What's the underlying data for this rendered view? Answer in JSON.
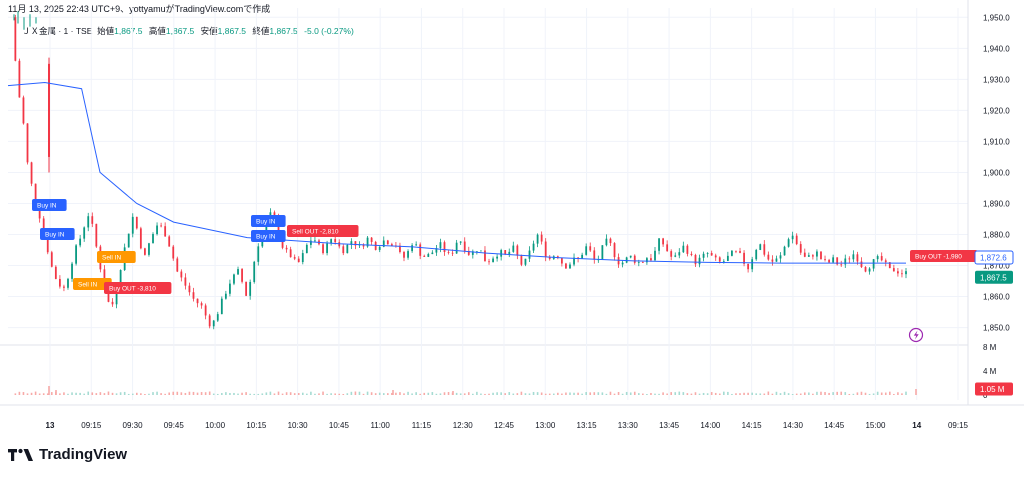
{
  "caption": "11月 13, 2025 22:43 UTC+9、yottyamuがTradingView.comで作成",
  "legend": {
    "symbol": "ＪＸ金属 · 1 · TSE",
    "open_label": "始値",
    "open": "1,867.5",
    "high_label": "高値",
    "high": "1,867.5",
    "low_label": "安値",
    "low": "1,867.5",
    "close_label": "終値",
    "close": "1,867.5",
    "change": "-5.0 (-0.27%)"
  },
  "footer": {
    "brand": "TradingView"
  },
  "colors": {
    "up": "#089981",
    "down": "#f23645",
    "vwap": "#2962ff",
    "buy_tag": "#2962ff",
    "sell_tag": "#ff9800",
    "out_tag": "#f23645",
    "grid": "#f0f3fa"
  },
  "chart_data": {
    "type": "candlestick",
    "y_ticks": [
      1950,
      1940,
      1930,
      1920,
      1910,
      1900,
      1890,
      1880,
      1870,
      1860,
      1850
    ],
    "y_tick_labels": [
      "1,950.0",
      "1,940.0",
      "1,930.0",
      "1,920.0",
      "1,910.0",
      "1,900.0",
      "1,890.0",
      "1,880.0",
      "1,870.0",
      "1,860.0",
      "1,850.0"
    ],
    "ylim": [
      1846,
      1953
    ],
    "x_ticks": [
      "13",
      "09:15",
      "09:30",
      "09:45",
      "10:00",
      "10:15",
      "10:30",
      "10:45",
      "11:00",
      "11:15",
      "12:30",
      "12:45",
      "13:00",
      "13:15",
      "13:30",
      "13:45",
      "14:00",
      "14:15",
      "14:30",
      "14:45",
      "15:00",
      "14",
      "09:15"
    ],
    "x_tick_bold": [
      "13",
      "14"
    ],
    "volume_ticks": [
      "8 M",
      "4 M",
      "0"
    ],
    "current_price_label": "1,872.6",
    "last_price_label": "1,867.5",
    "last_volume_label": "1.05 M",
    "price_path": [
      [
        0,
        1950
      ],
      [
        1,
        1948
      ],
      [
        2,
        1946
      ],
      [
        3,
        1940
      ],
      [
        4,
        1936
      ],
      [
        5,
        1931
      ],
      [
        6,
        1925
      ],
      [
        8,
        1918
      ],
      [
        9,
        1912
      ],
      [
        10,
        1905
      ],
      [
        12,
        1898
      ],
      [
        14,
        1893
      ],
      [
        16,
        1889
      ],
      [
        18,
        1884
      ],
      [
        20,
        1879
      ],
      [
        22,
        1874
      ],
      [
        24,
        1869
      ],
      [
        26,
        1866
      ],
      [
        28,
        1864
      ],
      [
        30,
        1862
      ],
      [
        32,
        1865
      ],
      [
        34,
        1870
      ],
      [
        36,
        1874
      ],
      [
        38,
        1877
      ],
      [
        40,
        1880
      ],
      [
        42,
        1884
      ],
      [
        44,
        1887
      ],
      [
        46,
        1882
      ],
      [
        48,
        1876
      ],
      [
        50,
        1870
      ],
      [
        52,
        1864
      ],
      [
        54,
        1859
      ],
      [
        56,
        1856
      ],
      [
        58,
        1860
      ],
      [
        60,
        1866
      ],
      [
        62,
        1872
      ],
      [
        64,
        1877
      ],
      [
        66,
        1882
      ],
      [
        68,
        1886
      ],
      [
        70,
        1882
      ],
      [
        72,
        1877
      ],
      [
        74,
        1872
      ],
      [
        76,
        1876
      ],
      [
        78,
        1879
      ],
      [
        80,
        1882
      ],
      [
        82,
        1884
      ],
      [
        84,
        1881
      ],
      [
        86,
        1880
      ],
      [
        88,
        1876
      ],
      [
        90,
        1872
      ],
      [
        92,
        1868
      ],
      [
        94,
        1866
      ],
      [
        96,
        1864
      ],
      [
        98,
        1862
      ],
      [
        100,
        1860
      ],
      [
        102,
        1858
      ],
      [
        104,
        1858
      ],
      [
        106,
        1856
      ],
      [
        108,
        1853
      ],
      [
        110,
        1851
      ],
      [
        112,
        1852
      ],
      [
        114,
        1855
      ],
      [
        116,
        1858
      ],
      [
        118,
        1861
      ],
      [
        120,
        1864
      ],
      [
        122,
        1866
      ],
      [
        124,
        1867
      ],
      [
        126,
        1869
      ],
      [
        128,
        1862
      ],
      [
        130,
        1860
      ],
      [
        132,
        1866
      ],
      [
        134,
        1872
      ],
      [
        136,
        1877
      ],
      [
        138,
        1880
      ],
      [
        140,
        1883
      ],
      [
        142,
        1886
      ],
      [
        144,
        1887
      ],
      [
        146,
        1882
      ],
      [
        148,
        1878
      ],
      [
        150,
        1875
      ],
      [
        152,
        1874
      ],
      [
        154,
        1873
      ],
      [
        156,
        1871
      ],
      [
        158,
        1871
      ],
      [
        160,
        1873
      ],
      [
        162,
        1876
      ],
      [
        164,
        1878
      ],
      [
        166,
        1879
      ],
      [
        168,
        1877
      ],
      [
        170,
        1875
      ],
      [
        172,
        1875
      ],
      [
        174,
        1877
      ],
      [
        176,
        1879
      ],
      [
        178,
        1878
      ],
      [
        180,
        1876
      ],
      [
        182,
        1875
      ],
      [
        184,
        1876
      ],
      [
        186,
        1878
      ],
      [
        188,
        1878
      ],
      [
        190,
        1876
      ],
      [
        192,
        1876
      ],
      [
        194,
        1878
      ],
      [
        196,
        1879
      ],
      [
        198,
        1877
      ],
      [
        200,
        1876
      ],
      [
        202,
        1877
      ],
      [
        204,
        1878
      ],
      [
        206,
        1878
      ],
      [
        208,
        1877
      ],
      [
        210,
        1878
      ],
      [
        212,
        1875
      ],
      [
        214,
        1872
      ],
      [
        216,
        1873
      ],
      [
        218,
        1875
      ],
      [
        220,
        1878
      ],
      [
        222,
        1876
      ],
      [
        224,
        1874
      ],
      [
        226,
        1873
      ],
      [
        228,
        1873
      ],
      [
        230,
        1874
      ],
      [
        232,
        1875
      ],
      [
        234,
        1877
      ],
      [
        236,
        1876
      ],
      [
        238,
        1874
      ],
      [
        240,
        1873
      ],
      [
        242,
        1875
      ],
      [
        244,
        1878
      ],
      [
        246,
        1878
      ],
      [
        248,
        1876
      ],
      [
        250,
        1874
      ],
      [
        252,
        1874
      ],
      [
        254,
        1875
      ],
      [
        256,
        1876
      ],
      [
        258,
        1873
      ],
      [
        260,
        1871
      ],
      [
        262,
        1872
      ],
      [
        264,
        1873
      ],
      [
        266,
        1874
      ],
      [
        268,
        1874
      ],
      [
        270,
        1873
      ],
      [
        272,
        1874
      ],
      [
        274,
        1876
      ],
      [
        276,
        1874
      ],
      [
        278,
        1871
      ],
      [
        280,
        1870
      ],
      [
        282,
        1872
      ],
      [
        284,
        1875
      ],
      [
        286,
        1878
      ],
      [
        288,
        1880
      ],
      [
        290,
        1877
      ],
      [
        292,
        1874
      ],
      [
        294,
        1872
      ],
      [
        296,
        1873
      ],
      [
        298,
        1874
      ],
      [
        300,
        1872
      ],
      [
        302,
        1870
      ],
      [
        304,
        1870
      ],
      [
        306,
        1871
      ],
      [
        308,
        1872
      ],
      [
        310,
        1872
      ],
      [
        312,
        1874
      ],
      [
        314,
        1876
      ],
      [
        316,
        1875
      ],
      [
        318,
        1872
      ],
      [
        320,
        1871
      ],
      [
        322,
        1874
      ],
      [
        324,
        1877
      ],
      [
        326,
        1878
      ],
      [
        328,
        1876
      ],
      [
        330,
        1873
      ],
      [
        332,
        1871
      ],
      [
        334,
        1871
      ],
      [
        336,
        1872
      ],
      [
        338,
        1873
      ],
      [
        340,
        1872
      ],
      [
        342,
        1871
      ],
      [
        344,
        1871
      ],
      [
        346,
        1872
      ],
      [
        348,
        1873
      ],
      [
        350,
        1872
      ],
      [
        352,
        1875
      ],
      [
        354,
        1878
      ],
      [
        356,
        1877
      ],
      [
        358,
        1875
      ],
      [
        360,
        1873
      ],
      [
        362,
        1872
      ],
      [
        364,
        1874
      ],
      [
        366,
        1876
      ],
      [
        368,
        1876
      ],
      [
        370,
        1874
      ],
      [
        372,
        1872
      ],
      [
        374,
        1871
      ],
      [
        376,
        1872
      ],
      [
        378,
        1873
      ],
      [
        380,
        1874
      ],
      [
        382,
        1873
      ],
      [
        384,
        1872
      ],
      [
        386,
        1871
      ],
      [
        388,
        1871
      ],
      [
        390,
        1872
      ],
      [
        392,
        1873
      ],
      [
        394,
        1874
      ],
      [
        396,
        1874
      ],
      [
        398,
        1873
      ],
      [
        400,
        1871
      ],
      [
        402,
        1869
      ],
      [
        404,
        1872
      ],
      [
        406,
        1875
      ],
      [
        408,
        1877
      ],
      [
        410,
        1876
      ],
      [
        412,
        1872
      ],
      [
        414,
        1872
      ],
      [
        416,
        1871
      ],
      [
        418,
        1872
      ],
      [
        420,
        1873
      ],
      [
        422,
        1876
      ],
      [
        424,
        1879
      ],
      [
        426,
        1880
      ],
      [
        428,
        1878
      ],
      [
        430,
        1875
      ],
      [
        432,
        1873
      ],
      [
        434,
        1872
      ],
      [
        436,
        1873
      ],
      [
        438,
        1874
      ],
      [
        440,
        1874
      ],
      [
        442,
        1872
      ],
      [
        444,
        1871
      ],
      [
        446,
        1871
      ],
      [
        448,
        1872
      ],
      [
        450,
        1871
      ],
      [
        452,
        1870
      ],
      [
        454,
        1871
      ],
      [
        456,
        1872
      ],
      [
        458,
        1873
      ],
      [
        460,
        1874
      ],
      [
        462,
        1872
      ],
      [
        464,
        1870
      ],
      [
        466,
        1869
      ],
      [
        468,
        1870
      ],
      [
        470,
        1871
      ],
      [
        472,
        1872
      ],
      [
        474,
        1872
      ],
      [
        476,
        1871
      ],
      [
        478,
        1869
      ],
      [
        480,
        1868
      ],
      [
        482,
        1869
      ],
      [
        484,
        1868
      ],
      [
        486,
        1867.5
      ],
      [
        488,
        1867.5
      ]
    ],
    "vwap": [
      [
        0,
        1928
      ],
      [
        20,
        1929
      ],
      [
        40,
        1927
      ],
      [
        50,
        1900
      ],
      [
        70,
        1890
      ],
      [
        90,
        1884
      ],
      [
        130,
        1879
      ],
      [
        180,
        1877
      ],
      [
        220,
        1876
      ],
      [
        260,
        1874
      ],
      [
        300,
        1872.5
      ],
      [
        340,
        1871.5
      ],
      [
        380,
        1871
      ],
      [
        420,
        1870.8
      ],
      [
        460,
        1870.8
      ],
      [
        488,
        1870.8
      ]
    ],
    "annotations": [
      {
        "label": "Buy IN",
        "kind": "buy"
      },
      {
        "label": "Buy IN",
        "kind": "buy"
      },
      {
        "label": "Sell IN",
        "kind": "sell"
      },
      {
        "label": "Sell IN",
        "kind": "sell"
      },
      {
        "label": "Buy OUT -3,810",
        "kind": "out"
      },
      {
        "label": "Buy IN",
        "kind": "buy"
      },
      {
        "label": "Buy IN",
        "kind": "buy"
      },
      {
        "label": "Sell OUT -2,810",
        "kind": "out"
      },
      {
        "label": "Buy OUT -1,980",
        "kind": "out"
      }
    ]
  }
}
